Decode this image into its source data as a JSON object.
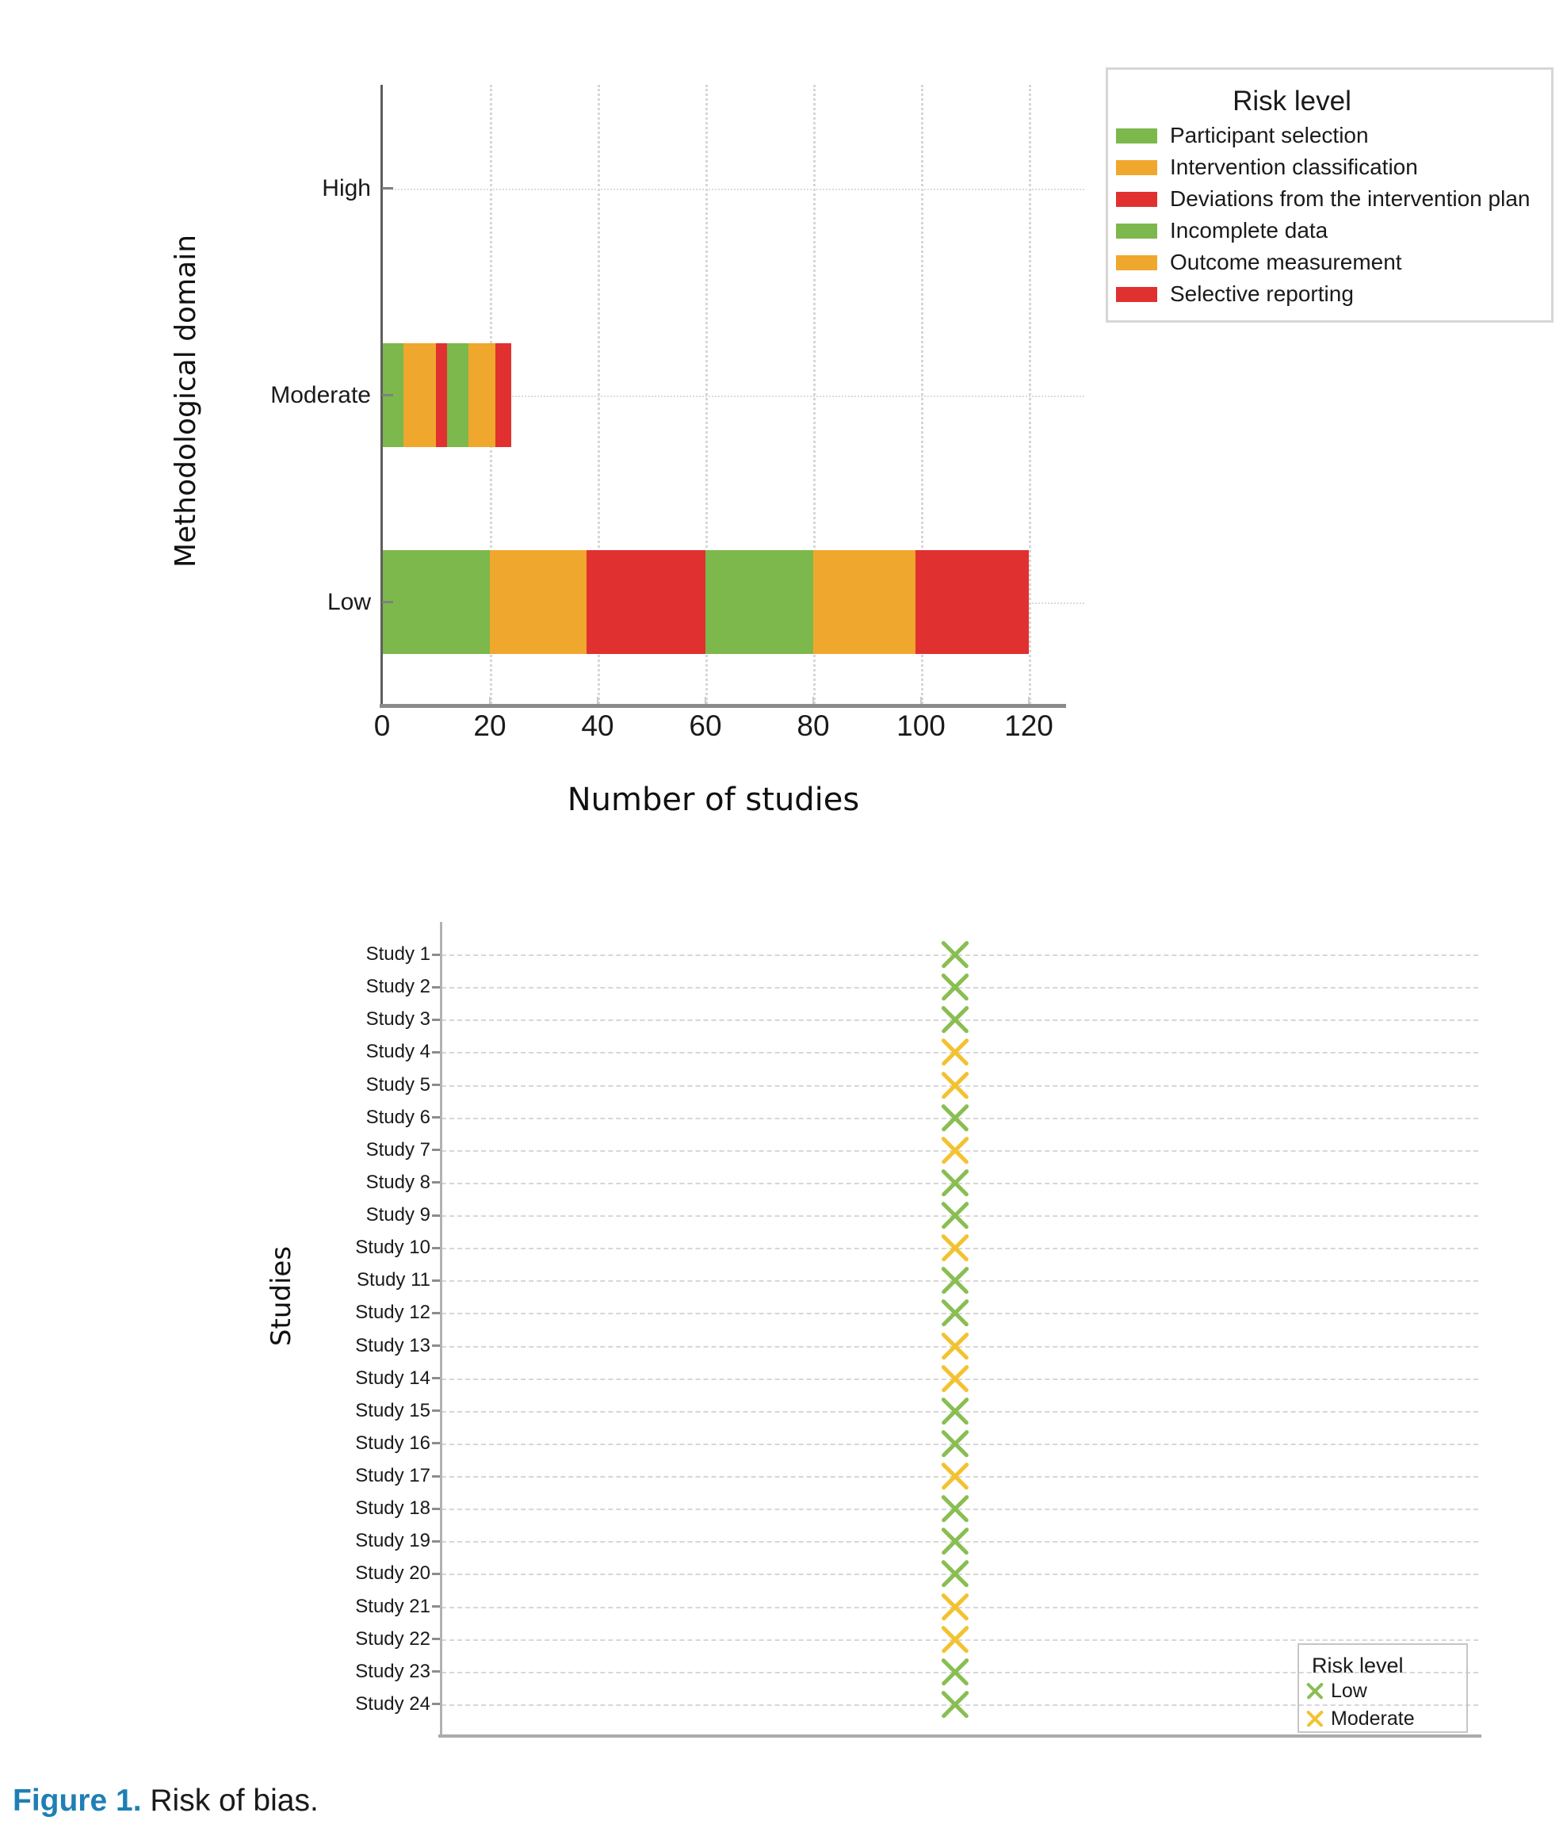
{
  "caption": {
    "label": "Figure 1.",
    "text": "Risk of bias."
  },
  "colors": {
    "bar_green": "#7cb84c",
    "bar_yellow": "#f0a72d",
    "bar_red": "#e03130",
    "marker_green": "#89be52",
    "marker_yellow": "#f2c230",
    "caption_blue": "#1f7fb4"
  },
  "chart_data": [
    {
      "type": "bar",
      "orientation": "horizontal",
      "stacked": true,
      "title": "",
      "xlabel": "Number of studies",
      "ylabel": "Methodological domain",
      "categories": [
        "High",
        "Moderate",
        "Low"
      ],
      "x_ticks": [
        0,
        20,
        40,
        60,
        80,
        100,
        120
      ],
      "xlim": [
        0,
        130
      ],
      "grid": {
        "vertical": "dotted",
        "horizontal": "dotted"
      },
      "legend": {
        "title": "Risk level",
        "position": "top-right"
      },
      "series": [
        {
          "name": "Participant selection",
          "color": "#7cb84c",
          "values": {
            "High": 0,
            "Moderate": 4,
            "Low": 20
          }
        },
        {
          "name": "Intervention classification",
          "color": "#f0a72d",
          "values": {
            "High": 0,
            "Moderate": 6,
            "Low": 18
          }
        },
        {
          "name": "Deviations from the intervention plan",
          "color": "#e03130",
          "values": {
            "High": 0,
            "Moderate": 2,
            "Low": 22
          }
        },
        {
          "name": "Incomplete data",
          "color": "#7cb84c",
          "values": {
            "High": 0,
            "Moderate": 4,
            "Low": 20
          }
        },
        {
          "name": "Outcome measurement",
          "color": "#f0a72d",
          "values": {
            "High": 0,
            "Moderate": 5,
            "Low": 19
          }
        },
        {
          "name": "Selective reporting",
          "color": "#e03130",
          "values": {
            "High": 0,
            "Moderate": 3,
            "Low": 21
          }
        }
      ]
    },
    {
      "type": "scatter",
      "marker": "x",
      "title": "",
      "xlabel": "",
      "ylabel": "Studies",
      "legend": {
        "title": "Risk level",
        "position": "bottom-right",
        "entries": [
          {
            "label": "Low",
            "color": "#89be52"
          },
          {
            "label": "Moderate",
            "color": "#f2c230"
          }
        ]
      },
      "points": [
        {
          "label": "Study 1",
          "risk": "Low"
        },
        {
          "label": "Study 2",
          "risk": "Low"
        },
        {
          "label": "Study 3",
          "risk": "Low"
        },
        {
          "label": "Study 4",
          "risk": "Moderate"
        },
        {
          "label": "Study 5",
          "risk": "Moderate"
        },
        {
          "label": "Study 6",
          "risk": "Low"
        },
        {
          "label": "Study 7",
          "risk": "Moderate"
        },
        {
          "label": "Study 8",
          "risk": "Low"
        },
        {
          "label": "Study 9",
          "risk": "Low"
        },
        {
          "label": "Study 10",
          "risk": "Moderate"
        },
        {
          "label": "Study 11",
          "risk": "Low"
        },
        {
          "label": "Study 12",
          "risk": "Low"
        },
        {
          "label": "Study 13",
          "risk": "Moderate"
        },
        {
          "label": "Study 14",
          "risk": "Moderate"
        },
        {
          "label": "Study 15",
          "risk": "Low"
        },
        {
          "label": "Study 16",
          "risk": "Low"
        },
        {
          "label": "Study 17",
          "risk": "Moderate"
        },
        {
          "label": "Study 18",
          "risk": "Low"
        },
        {
          "label": "Study 19",
          "risk": "Low"
        },
        {
          "label": "Study 20",
          "risk": "Low"
        },
        {
          "label": "Study 21",
          "risk": "Moderate"
        },
        {
          "label": "Study 22",
          "risk": "Moderate"
        },
        {
          "label": "Study 23",
          "risk": "Low"
        },
        {
          "label": "Study 24",
          "risk": "Low"
        }
      ]
    }
  ]
}
